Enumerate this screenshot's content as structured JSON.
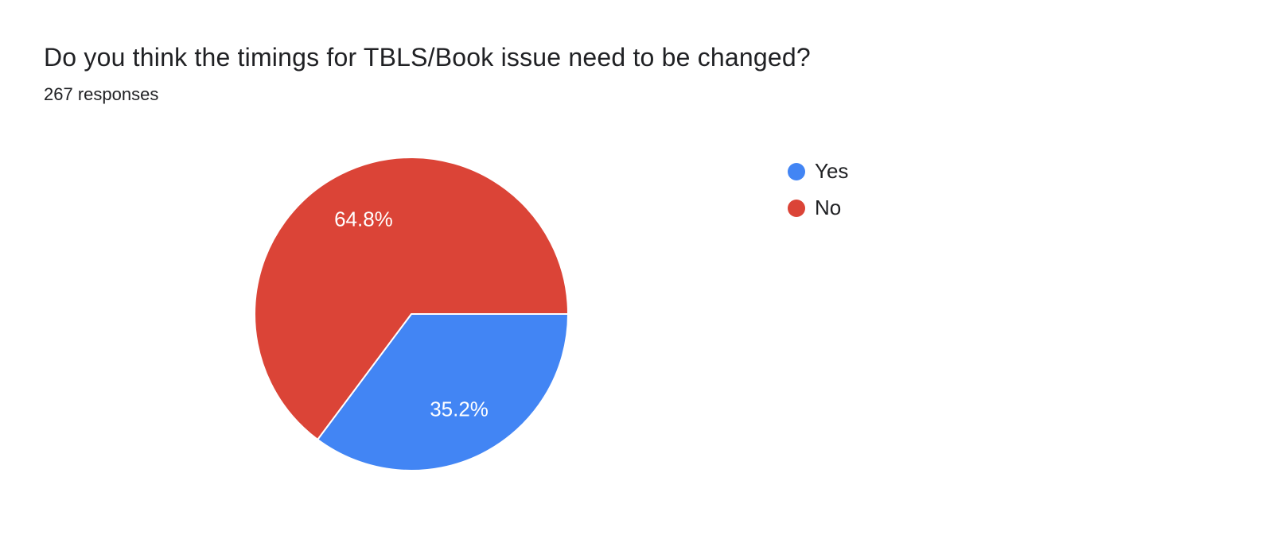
{
  "header": {
    "title": "Do you think the timings for TBLS/Book issue need to be changed?",
    "subtitle": "267 responses"
  },
  "chart_data": {
    "type": "pie",
    "title": "Do you think the timings for TBLS/Book issue need to be changed?",
    "subtitle": "267 responses",
    "labels": [
      "Yes",
      "No"
    ],
    "values": [
      35.2,
      64.8
    ],
    "value_labels": [
      "35.2%",
      "64.8%"
    ],
    "colors": [
      "#4285f4",
      "#db4437"
    ],
    "slice_label_color": "#ffffff",
    "legend_position": "right",
    "start_angle_deg": 0,
    "direction": "clockwise"
  }
}
